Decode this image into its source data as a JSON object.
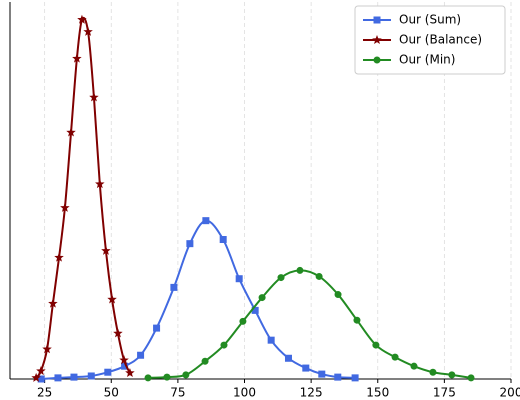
{
  "chart_data": {
    "type": "line",
    "xlim": [
      12,
      200
    ],
    "ylim": [
      0,
      1
    ],
    "xticks": [
      25,
      50,
      75,
      100,
      125,
      150,
      175,
      200
    ],
    "grid": true,
    "legend": "upper right",
    "series": [
      {
        "name": "Our (Sum)",
        "color": "#4169e1",
        "marker": "square",
        "x": [
          23.7,
          30,
          36,
          42.5,
          48.7,
          55,
          61,
          67,
          73.5,
          79.5,
          85.5,
          92,
          98,
          104,
          110,
          116.5,
          123,
          129,
          135,
          141.5
        ],
        "values": [
          0,
          0.003,
          0.005,
          0.008,
          0.018,
          0.034,
          0.063,
          0.135,
          0.243,
          0.359,
          0.42,
          0.37,
          0.266,
          0.182,
          0.103,
          0.055,
          0.029,
          0.013,
          0.005,
          0.003
        ]
      },
      {
        "name": "Our (Balance)",
        "color": "#800000",
        "marker": "star",
        "x": [
          21.8,
          23.6,
          25.9,
          28.1,
          30.4,
          32.6,
          34.9,
          37.1,
          39,
          41.3,
          43.5,
          45.7,
          48,
          50.3,
          52.5,
          54.8,
          57
        ],
        "values": [
          0.003,
          0.021,
          0.079,
          0.2,
          0.322,
          0.454,
          0.654,
          0.85,
          0.953,
          0.921,
          0.747,
          0.517,
          0.34,
          0.211,
          0.121,
          0.05,
          0.016
        ]
      },
      {
        "name": "Our (Min)",
        "color": "#228b22",
        "marker": "circle",
        "x": [
          63.8,
          70.9,
          78,
          85.2,
          92.3,
          99.4,
          106.6,
          113.7,
          120.8,
          128,
          135.1,
          142.2,
          149.3,
          156.5,
          163.6,
          170.7,
          177.8,
          185
        ],
        "values": [
          0.003,
          0.005,
          0.011,
          0.047,
          0.09,
          0.153,
          0.216,
          0.269,
          0.288,
          0.272,
          0.224,
          0.156,
          0.09,
          0.058,
          0.034,
          0.018,
          0.011,
          0.003
        ]
      }
    ]
  }
}
